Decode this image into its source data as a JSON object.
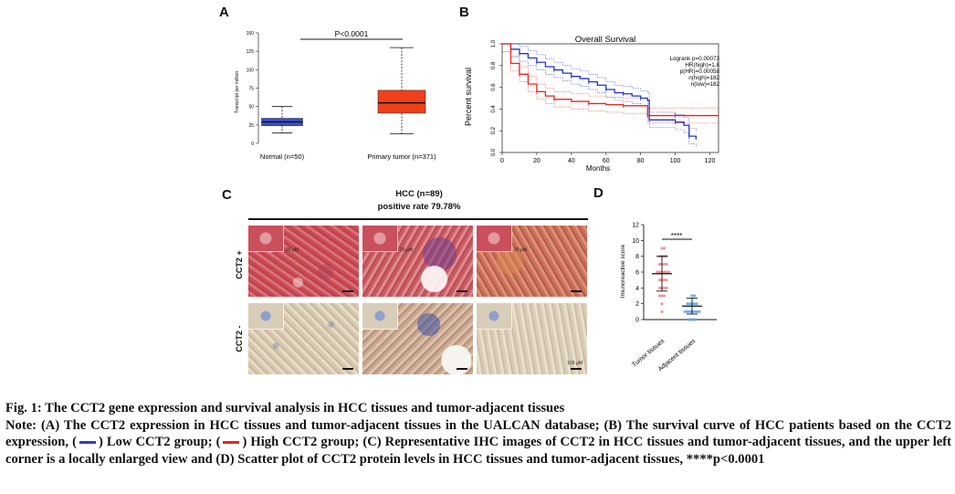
{
  "panel_letters": {
    "a": "A",
    "b": "B",
    "c": "C",
    "d": "D"
  },
  "chart_data": [
    {
      "panel": "A",
      "type": "boxplot",
      "ylabel": "Transcript per million",
      "ylim": [
        0,
        150
      ],
      "yticks": [
        0,
        25,
        50,
        75,
        100,
        125,
        150
      ],
      "categories": [
        "Normal (n=50)",
        "Primary tumor (n=371)"
      ],
      "boxes": [
        {
          "name": "Normal (n=50)",
          "min": 14,
          "q1": 24,
          "median": 29,
          "q3": 34,
          "max": 50,
          "color": "#3a50d0"
        },
        {
          "name": "Primary tumor (n=371)",
          "min": 13,
          "q1": 41,
          "median": 55,
          "q3": 72,
          "max": 130,
          "color": "#f0401a"
        }
      ],
      "annotation": "P<0.0001"
    },
    {
      "panel": "B",
      "type": "line",
      "title": "Overall Survival",
      "xlabel": "Months",
      "ylabel": "Percent survival",
      "xlim": [
        0,
        125
      ],
      "ylim": [
        0,
        1.0
      ],
      "xticks": [
        0,
        20,
        40,
        60,
        80,
        100,
        120
      ],
      "yticks": [
        "0.0",
        "0.2",
        "0.4",
        "0.6",
        "0.8",
        "1.0"
      ],
      "stats": [
        "Logrank p=0.00073",
        "HR(high)=1.8",
        "p(HR)=0.00058",
        "n(high)=182",
        "n(low)=182"
      ],
      "series": [
        {
          "color": "#2233cc",
          "x": [
            0,
            5,
            10,
            15,
            20,
            25,
            30,
            35,
            40,
            45,
            50,
            55,
            60,
            65,
            70,
            75,
            80,
            84,
            85,
            95,
            100,
            105,
            108,
            112
          ],
          "y": [
            1.0,
            0.95,
            0.91,
            0.87,
            0.83,
            0.79,
            0.76,
            0.73,
            0.7,
            0.68,
            0.65,
            0.62,
            0.58,
            0.55,
            0.54,
            0.52,
            0.5,
            0.48,
            0.3,
            0.3,
            0.28,
            0.25,
            0.15,
            0.12
          ]
        },
        {
          "color": "#e6261f",
          "x": [
            0,
            5,
            10,
            15,
            20,
            25,
            30,
            40,
            50,
            60,
            70,
            80,
            84,
            90,
            100,
            110,
            125
          ],
          "y": [
            1.0,
            0.82,
            0.72,
            0.63,
            0.56,
            0.52,
            0.49,
            0.47,
            0.45,
            0.44,
            0.43,
            0.43,
            0.34,
            0.34,
            0.34,
            0.34,
            0.34
          ]
        }
      ]
    },
    {
      "panel": "D",
      "type": "scatter",
      "ylabel": "Imunoreactive score",
      "ylim": [
        0,
        12
      ],
      "yticks": [
        0,
        2,
        4,
        6,
        8,
        10,
        12
      ],
      "categories": [
        "Tumor tissues",
        "Adjacent tissues"
      ],
      "annotation": "****",
      "groups": [
        {
          "name": "Tumor tissues",
          "color": "#e88a93",
          "mean": 5.8,
          "sd": 2.2,
          "values": [
            9,
            9,
            8,
            8,
            8,
            8,
            7,
            7,
            7,
            7,
            6,
            6,
            6,
            6,
            6,
            6,
            5,
            5,
            5,
            5,
            4,
            4,
            4,
            4,
            3,
            3,
            3,
            2,
            1
          ]
        },
        {
          "name": "Adjacent tissues",
          "color": "#5aa6e6",
          "mean": 1.7,
          "sd": 1.0,
          "values": [
            3,
            3,
            2,
            2,
            2,
            2,
            2,
            1,
            1,
            1,
            1,
            1,
            1,
            1,
            0,
            0,
            0
          ]
        }
      ]
    }
  ],
  "ihc": {
    "title": "HCC (n=89)",
    "subtitle": "positive rate 79.78%",
    "row_pos": "CCT2 +",
    "row_neg": "CCT2 -",
    "inset_scale": "20 μM",
    "main_scale": "100 μM"
  },
  "caption": {
    "title": "Fig. 1: The CCT2 gene expression and survival analysis in HCC tissues and tumor-adjacent tissues",
    "note_1": "Note: (A) The CCT2 expression in HCC tissues and tumor-adjacent tissues in the UALCAN database; (B) The survival curve of HCC patients based on the CCT2 expression, (",
    "note_low": ") Low CCT2 group; (",
    "note_2": ") High CCT2 group; (C) Representative IHC images of CCT2 in HCC tissues and tumor-adjacent tissues, and the upper left corner is a locally enlarged view and (D) Scatter plot of CCT2 protein levels in HCC tissues and tumor-adjacent tissues, ****p<0.0001"
  }
}
